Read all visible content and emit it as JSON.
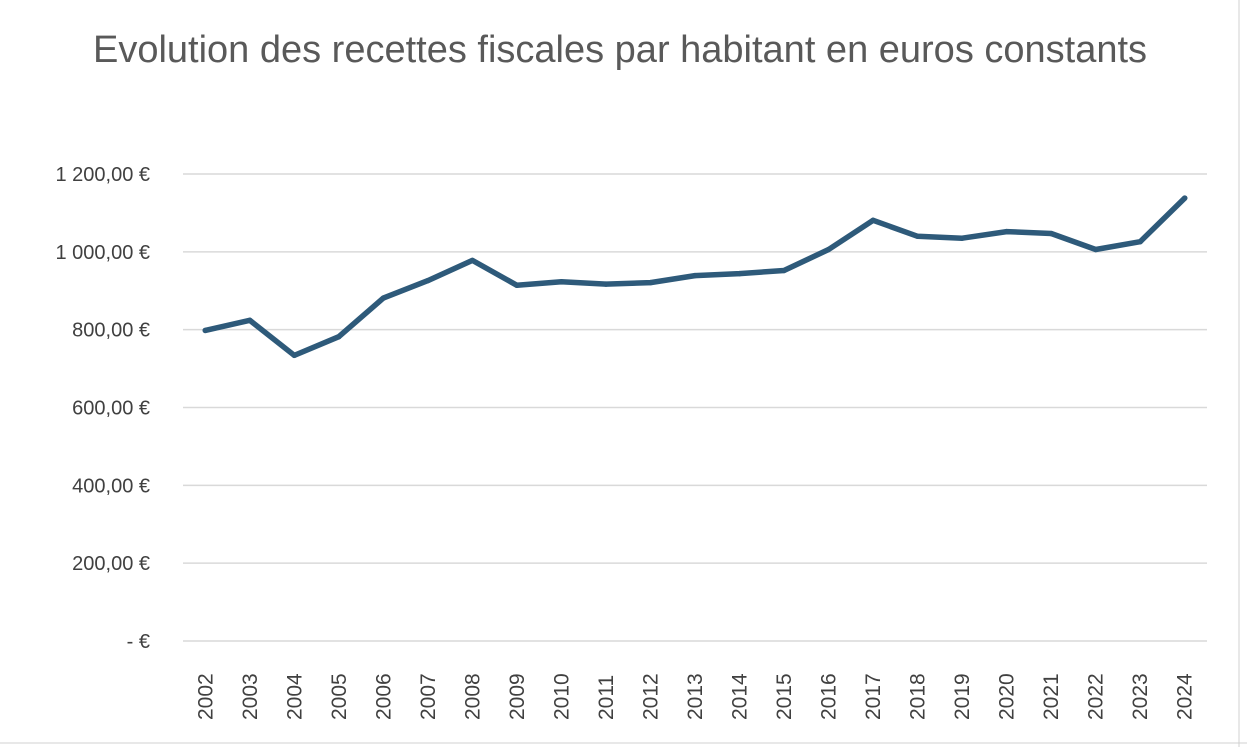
{
  "chart_data": {
    "type": "line",
    "title": "Evolution des recettes fiscales par habitant en euros constants",
    "xlabel": "",
    "ylabel": "",
    "ylim": [
      0,
      1200
    ],
    "yticks": [
      {
        "value": 1200,
        "label": "1 200,00 €"
      },
      {
        "value": 1000,
        "label": "1 000,00 €"
      },
      {
        "value": 800,
        "label": "800,00 €"
      },
      {
        "value": 600,
        "label": "600,00 €"
      },
      {
        "value": 400,
        "label": "400,00 €"
      },
      {
        "value": 200,
        "label": "200,00 €"
      },
      {
        "value": 0,
        "label": "-  €"
      }
    ],
    "categories": [
      "2002",
      "2003",
      "2004",
      "2005",
      "2006",
      "2007",
      "2008",
      "2009",
      "2010",
      "2011",
      "2012",
      "2013",
      "2014",
      "2015",
      "2016",
      "2017",
      "2018",
      "2019",
      "2020",
      "2021",
      "2022",
      "2023",
      "2024"
    ],
    "series": [
      {
        "values": [
          798,
          824,
          734,
          782,
          881,
          926,
          978,
          914,
          923,
          917,
          921,
          939,
          944,
          952,
          1006,
          1081,
          1040,
          1035,
          1052,
          1047,
          1006,
          1026,
          1138
        ]
      }
    ],
    "grid": true,
    "legend": "none",
    "colors": {
      "series": "#2e5a7a",
      "grid": "#d9d9d9",
      "text": "#404040",
      "title": "#595959"
    }
  }
}
